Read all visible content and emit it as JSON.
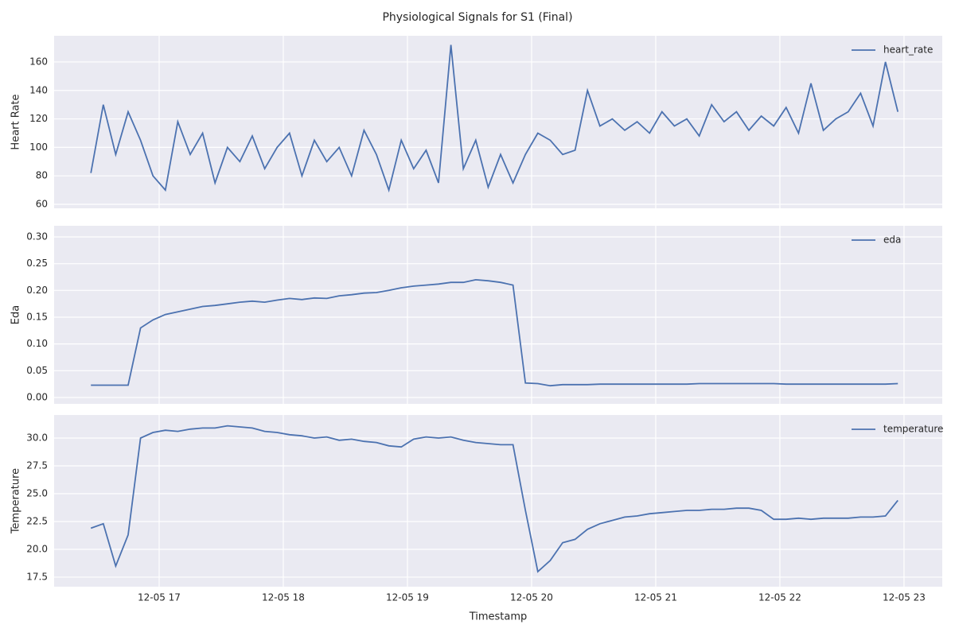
{
  "title": "Physiological Signals for S1 (Final)",
  "chart_data": [
    {
      "type": "line",
      "ylabel": "Heart Rate",
      "grid": true,
      "legend": "upper right",
      "xlim": [
        16.154,
        23.308
      ],
      "xticks": [
        17,
        18,
        19,
        20,
        21,
        22,
        23
      ],
      "ylim": [
        57.2,
        178.4
      ],
      "yticks": [
        60,
        80,
        100,
        120,
        140,
        160
      ],
      "x": [
        16.45,
        16.55,
        16.65,
        16.75,
        16.85,
        16.95,
        17.05,
        17.15,
        17.25,
        17.35,
        17.45,
        17.55,
        17.65,
        17.75,
        17.85,
        17.95,
        18.05,
        18.15,
        18.25,
        18.35,
        18.45,
        18.55,
        18.65,
        18.75,
        18.85,
        18.95,
        19.05,
        19.15,
        19.25,
        19.35,
        19.45,
        19.55,
        19.65,
        19.75,
        19.85,
        19.95,
        20.05,
        20.15,
        20.25,
        20.35,
        20.45,
        20.55,
        20.65,
        20.75,
        20.85,
        20.95,
        21.05,
        21.15,
        21.25,
        21.35,
        21.45,
        21.55,
        21.65,
        21.75,
        21.85,
        21.95,
        22.05,
        22.15,
        22.25,
        22.35,
        22.45,
        22.55,
        22.65,
        22.75,
        22.85,
        22.95
      ],
      "series": [
        {
          "name": "heart_rate",
          "color": "#4c72b0",
          "values": [
            82,
            130,
            95,
            125,
            105,
            80,
            70,
            118,
            95,
            110,
            75,
            100,
            90,
            108,
            85,
            100,
            110,
            80,
            105,
            90,
            100,
            80,
            112,
            95,
            70,
            105,
            85,
            98,
            75,
            172,
            85,
            105,
            72,
            95,
            75,
            95,
            110,
            105,
            95,
            98,
            140,
            115,
            120,
            112,
            118,
            110,
            125,
            115,
            120,
            108,
            130,
            118,
            125,
            112,
            122,
            115,
            128,
            110,
            145,
            112,
            120,
            125,
            138,
            115,
            160,
            125
          ]
        }
      ]
    },
    {
      "type": "line",
      "ylabel": "Eda",
      "grid": true,
      "legend": "upper right",
      "xlim": [
        16.154,
        23.308
      ],
      "xticks": [
        17,
        18,
        19,
        20,
        21,
        22,
        23
      ],
      "ylim": [
        -0.0119,
        0.3208
      ],
      "yticks": [
        {
          "value": 0,
          "label": "0.00"
        },
        0.05,
        {
          "value": 0.1,
          "label": "0.10"
        },
        0.15,
        {
          "value": 0.2,
          "label": "0.20"
        },
        0.25,
        {
          "value": 0.3,
          "label": "0.30"
        }
      ],
      "x": [
        16.45,
        16.55,
        16.65,
        16.75,
        16.85,
        16.95,
        17.05,
        17.15,
        17.25,
        17.35,
        17.45,
        17.55,
        17.65,
        17.75,
        17.85,
        17.95,
        18.05,
        18.15,
        18.25,
        18.35,
        18.45,
        18.55,
        18.65,
        18.75,
        18.85,
        18.95,
        19.05,
        19.15,
        19.25,
        19.35,
        19.45,
        19.55,
        19.65,
        19.75,
        19.85,
        19.95,
        20.05,
        20.15,
        20.25,
        20.35,
        20.45,
        20.55,
        20.65,
        20.75,
        20.85,
        20.95,
        21.05,
        21.15,
        21.25,
        21.35,
        21.45,
        21.55,
        21.65,
        21.75,
        21.85,
        21.95,
        22.05,
        22.15,
        22.25,
        22.35,
        22.45,
        22.55,
        22.65,
        22.75,
        22.85,
        22.95
      ],
      "series": [
        {
          "name": "eda",
          "color": "#4c72b0",
          "values": [
            0.023,
            0.023,
            0.023,
            0.023,
            0.13,
            0.145,
            0.155,
            0.16,
            0.165,
            0.17,
            0.172,
            0.175,
            0.178,
            0.18,
            0.178,
            0.182,
            0.185,
            0.183,
            0.186,
            0.185,
            0.19,
            0.192,
            0.195,
            0.196,
            0.2,
            0.205,
            0.208,
            0.21,
            0.212,
            0.215,
            0.215,
            0.22,
            0.218,
            0.215,
            0.21,
            0.027,
            0.026,
            0.022,
            0.024,
            0.024,
            0.024,
            0.025,
            0.025,
            0.025,
            0.025,
            0.025,
            0.025,
            0.025,
            0.025,
            0.026,
            0.026,
            0.026,
            0.026,
            0.026,
            0.026,
            0.026,
            0.025,
            0.025,
            0.025,
            0.025,
            0.025,
            0.025,
            0.025,
            0.025,
            0.025,
            0.026
          ]
        }
      ]
    },
    {
      "type": "line",
      "ylabel": "Temperature",
      "xlabel": "Timestamp",
      "grid": true,
      "legend": "upper right",
      "xlim": [
        16.154,
        23.308
      ],
      "xticks": [
        {
          "value": 17,
          "label": "12-05 17"
        },
        {
          "value": 18,
          "label": "12-05 18"
        },
        {
          "value": 19,
          "label": "12-05 19"
        },
        {
          "value": 20,
          "label": "12-05 20"
        },
        {
          "value": 21,
          "label": "12-05 21"
        },
        {
          "value": 22,
          "label": "12-05 22"
        },
        {
          "value": 23,
          "label": "12-05 23"
        }
      ],
      "ylim": [
        16.64,
        32.07
      ],
      "yticks": [
        17.5,
        {
          "value": 20,
          "label": "20.0"
        },
        22.5,
        {
          "value": 25,
          "label": "25.0"
        },
        27.5,
        {
          "value": 30,
          "label": "30.0"
        }
      ],
      "x": [
        16.45,
        16.55,
        16.65,
        16.75,
        16.85,
        16.95,
        17.05,
        17.15,
        17.25,
        17.35,
        17.45,
        17.55,
        17.65,
        17.75,
        17.85,
        17.95,
        18.05,
        18.15,
        18.25,
        18.35,
        18.45,
        18.55,
        18.65,
        18.75,
        18.85,
        18.95,
        19.05,
        19.15,
        19.25,
        19.35,
        19.45,
        19.55,
        19.65,
        19.75,
        19.85,
        19.95,
        20.05,
        20.15,
        20.25,
        20.35,
        20.45,
        20.55,
        20.65,
        20.75,
        20.85,
        20.95,
        21.05,
        21.15,
        21.25,
        21.35,
        21.45,
        21.55,
        21.65,
        21.75,
        21.85,
        21.95,
        22.05,
        22.15,
        22.25,
        22.35,
        22.45,
        22.55,
        22.65,
        22.75,
        22.85,
        22.95
      ],
      "series": [
        {
          "name": "temperature",
          "color": "#4c72b0",
          "values": [
            21.9,
            22.3,
            18.5,
            21.3,
            30.0,
            30.5,
            30.7,
            30.6,
            30.8,
            30.9,
            30.9,
            31.1,
            31.0,
            30.9,
            30.6,
            30.5,
            30.3,
            30.2,
            30.0,
            30.1,
            29.8,
            29.9,
            29.7,
            29.6,
            29.3,
            29.2,
            29.9,
            30.1,
            30.0,
            30.1,
            29.8,
            29.6,
            29.5,
            29.4,
            29.4,
            23.5,
            18.0,
            19.0,
            20.6,
            20.9,
            21.8,
            22.3,
            22.6,
            22.9,
            23.0,
            23.2,
            23.3,
            23.4,
            23.5,
            23.5,
            23.6,
            23.6,
            23.7,
            23.7,
            23.5,
            22.7,
            22.7,
            22.8,
            22.7,
            22.8,
            22.8,
            22.8,
            22.9,
            22.9,
            23.0,
            24.4
          ]
        }
      ]
    }
  ]
}
